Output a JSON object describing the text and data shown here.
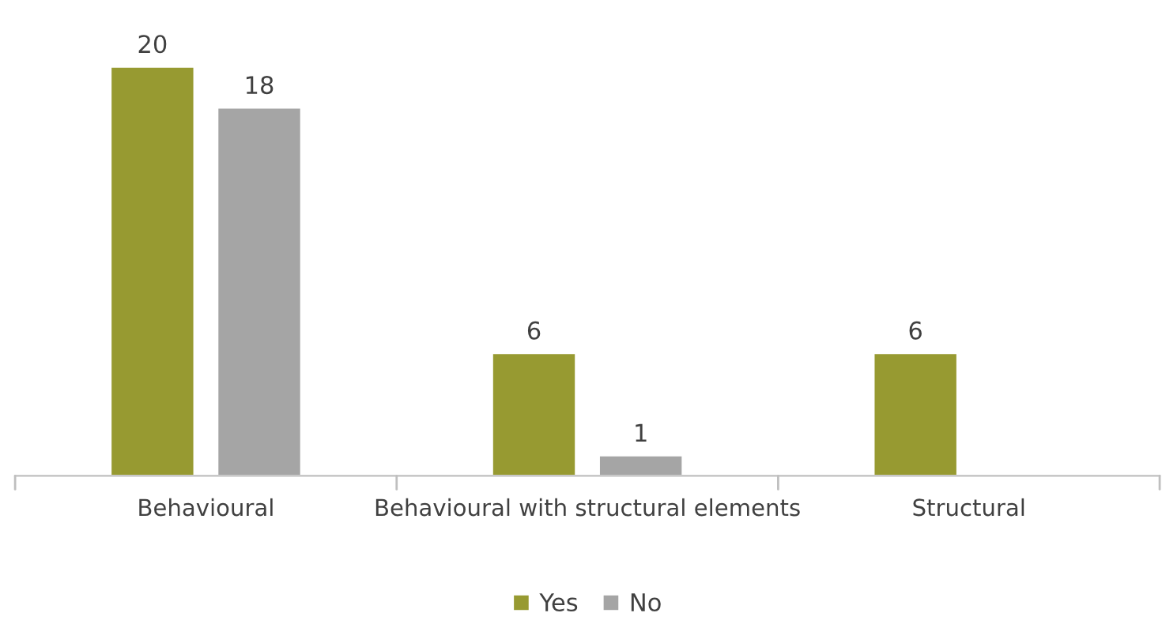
{
  "chart_data": {
    "type": "bar",
    "categories": [
      "Behavioural",
      "Behavioural with structural elements",
      "Structural"
    ],
    "series": [
      {
        "name": "Yes",
        "color": "#979a31",
        "values": [
          20,
          6,
          6
        ]
      },
      {
        "name": "No",
        "color": "#a5a5a5",
        "values": [
          18,
          1,
          null
        ]
      }
    ],
    "data_labels": true,
    "legend": "bottom"
  }
}
